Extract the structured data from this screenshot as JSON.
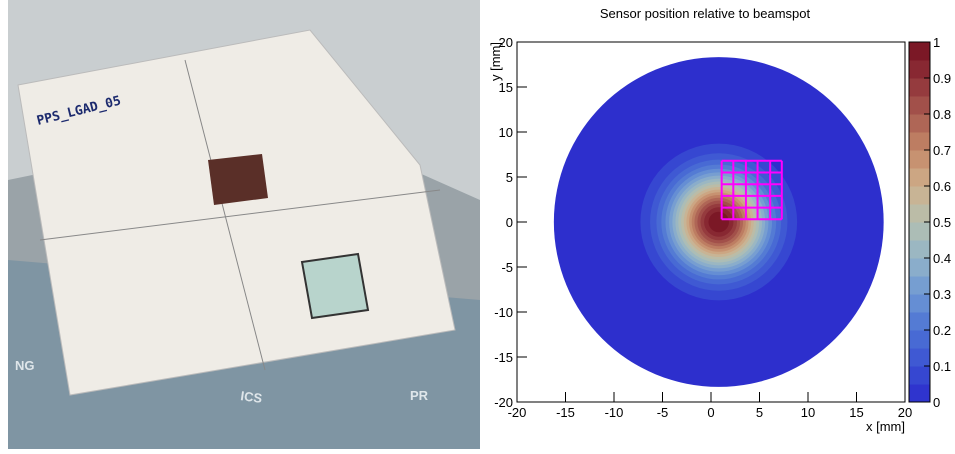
{
  "photo": {
    "label": "PPS_LGAD_05",
    "background_text": [
      "NG",
      "ICS",
      "PR"
    ]
  },
  "chart_data": {
    "type": "density",
    "title": "Sensor position relative to beamspot",
    "x_label": "x [mm]",
    "y_label": "y [mm]",
    "xlim": [
      -20,
      20
    ],
    "xticks": [
      -20,
      -15,
      -10,
      -5,
      0,
      5,
      10,
      15,
      20
    ],
    "ylim": [
      -20,
      20
    ],
    "yticks": [
      -20,
      -15,
      -10,
      -5,
      0,
      5,
      10,
      15,
      20
    ],
    "zlim": [
      0,
      1
    ],
    "zticks": [
      0,
      0.1,
      0.2,
      0.3,
      0.4,
      0.5,
      0.6,
      0.7,
      0.8,
      0.9,
      1
    ],
    "palette": [
      "#2b2bcc",
      "#3a50d2",
      "#4c72d4",
      "#6d97d4",
      "#93b4c8",
      "#b4c0b0",
      "#cfb08c",
      "#c48868",
      "#a85a50",
      "#8e3038",
      "#741020"
    ],
    "beam": {
      "center": [
        0.8,
        0
      ],
      "sigma": 3.3,
      "extent": 17
    },
    "sensor_grid": {
      "x": [
        1.1,
        2.3,
        3.6,
        4.8,
        6.1,
        7.3
      ],
      "y": [
        0.3,
        1.6,
        2.9,
        4.2,
        5.5,
        6.8
      ],
      "color": "#ff00ff"
    }
  }
}
